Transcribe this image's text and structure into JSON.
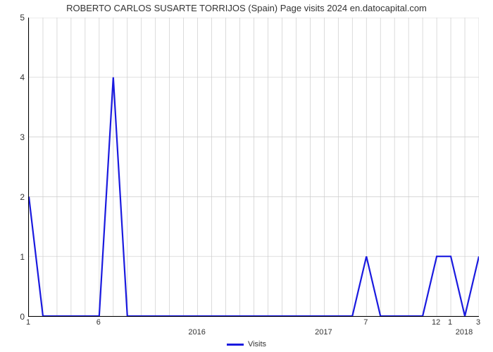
{
  "chart": {
    "type": "line",
    "title": "ROBERTO CARLOS SUSARTE TORRIJOS (Spain) Page visits 2024 en.datocapital.com",
    "title_fontsize": 13,
    "title_color": "#333333",
    "background_color": "#ffffff",
    "plot_border_color": "#000000",
    "grid_color": "#cccccc",
    "grid_stroke_width": 0.7,
    "line_color": "#1a1adf",
    "line_width": 2.2,
    "ylim": [
      0,
      5
    ],
    "yticks": [
      0,
      1,
      2,
      3,
      4,
      5
    ],
    "y_label_fontsize": 12,
    "x_label_fontsize": 11,
    "n_points": 33,
    "x_minor_every": 1,
    "x_major_labels_idx": [
      0,
      5,
      24,
      29,
      30,
      32
    ],
    "x_major_labels_text": [
      "1",
      "6",
      "7",
      "12",
      "1",
      "3"
    ],
    "x_year_labels": [
      {
        "idx_center": 12,
        "text": "2016"
      },
      {
        "idx_center": 21,
        "text": "2017"
      },
      {
        "idx_center": 31,
        "text": "2018"
      }
    ],
    "values": [
      2,
      0,
      0,
      0,
      0,
      0,
      4,
      0,
      0,
      0,
      0,
      0,
      0,
      0,
      0,
      0,
      0,
      0,
      0,
      0,
      0,
      0,
      0,
      0,
      1,
      0,
      0,
      0,
      0,
      1,
      1,
      0,
      1
    ],
    "legend": {
      "label": "Visits",
      "swatch_color": "#1a1adf"
    }
  }
}
